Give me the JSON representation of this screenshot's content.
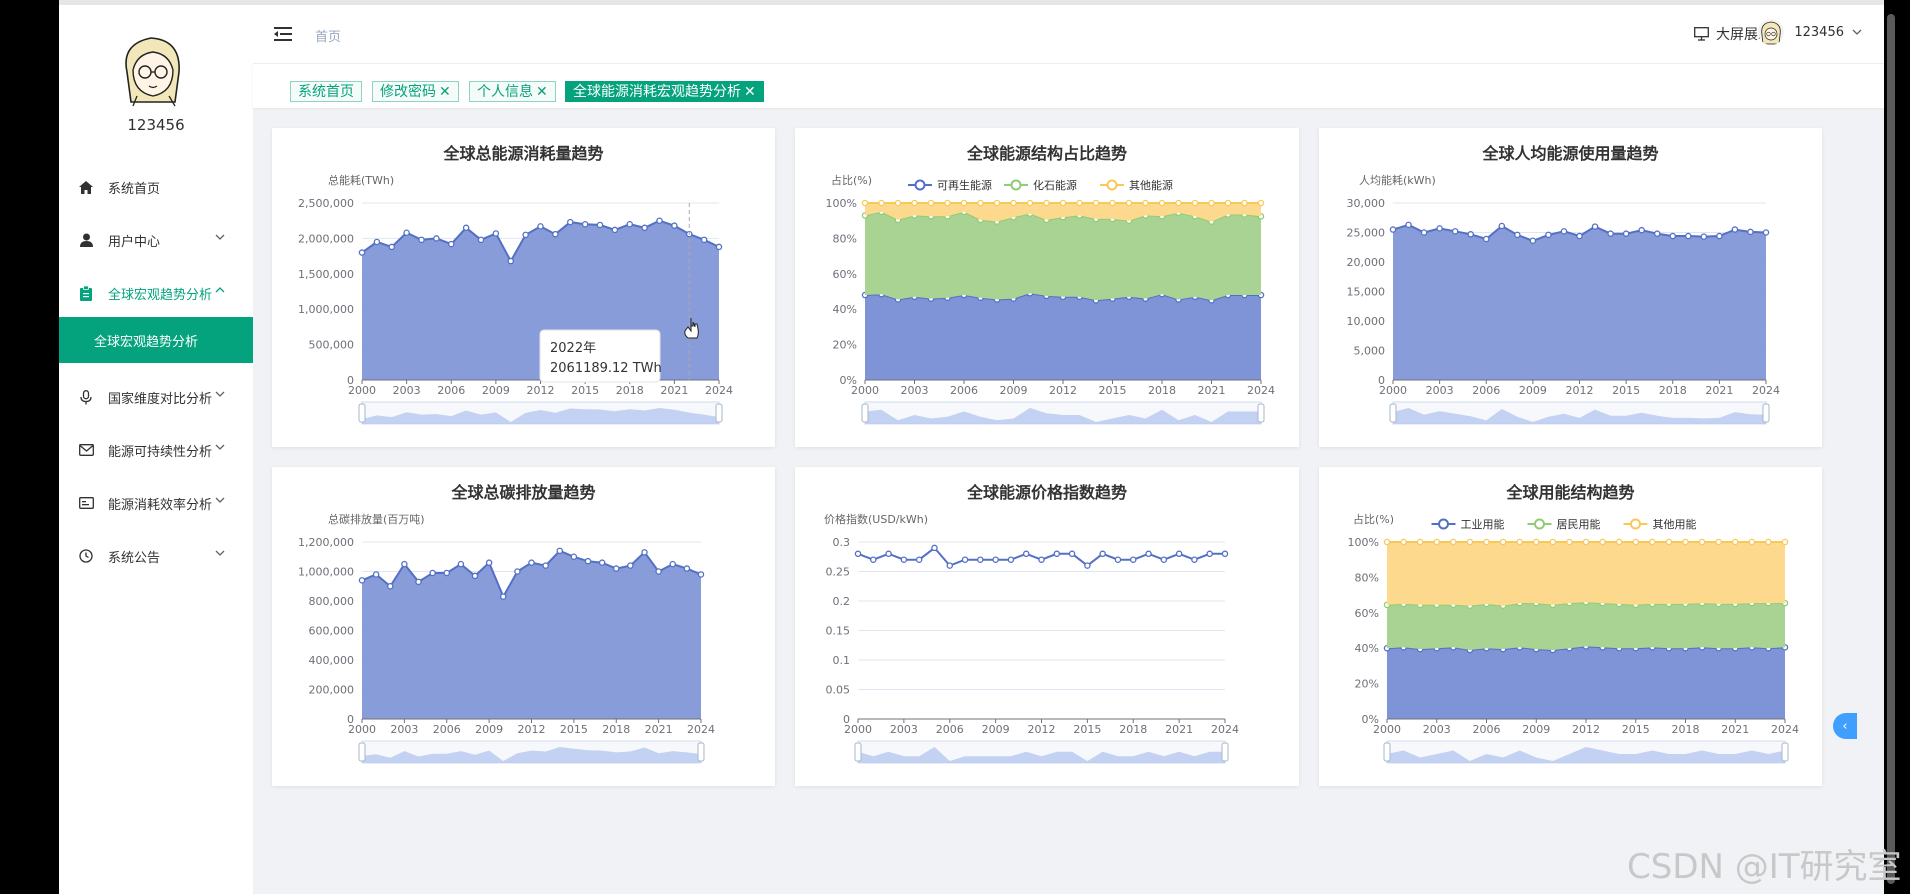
{
  "app": {
    "username": "123456"
  },
  "sidebar": {
    "items": [
      {
        "label": "系统首页",
        "icon": "home-icon"
      },
      {
        "label": "用户中心",
        "icon": "user-icon",
        "arrow": "⌄"
      },
      {
        "label": "全球宏观趋势分析",
        "icon": "clipboard-icon",
        "arrow": "^"
      },
      {
        "label": "国家维度对比分析",
        "icon": "microphone-icon",
        "arrow": "⌄"
      },
      {
        "label": "能源可持续性分析",
        "icon": "mail-icon",
        "arrow": "⌄"
      },
      {
        "label": "能源消耗效率分析",
        "icon": "card-icon",
        "arrow": "⌄"
      },
      {
        "label": "系统公告",
        "icon": "clock-icon",
        "arrow": "⌄"
      }
    ],
    "active_sub": "全球宏观趋势分析"
  },
  "header": {
    "breadcrumb": "首页",
    "bigscreen": "大屏展示",
    "username": "123456"
  },
  "tags": [
    {
      "label": "系统首页",
      "closable": false,
      "active": false
    },
    {
      "label": "修改密码",
      "closable": true,
      "active": false
    },
    {
      "label": "个人信息",
      "closable": true,
      "active": false
    },
    {
      "label": "全球能源消耗宏观趋势分析",
      "closable": true,
      "active": true
    }
  ],
  "tooltip": {
    "title": "2022年",
    "value": "2061189.12 TWh"
  },
  "watermark": "CSDN @IT研究室",
  "colors": {
    "accent": "#05a37d",
    "series_blue": "#5470c6",
    "series_green": "#91cc75",
    "series_yellow": "#fac858"
  },
  "chart_data": [
    {
      "id": "c1",
      "type": "area",
      "title": "全球总能源消耗量趋势",
      "ylabel": "总能耗(TWh)",
      "ylim": [
        0,
        2500000
      ],
      "yticks": [
        "0",
        "500,000",
        "1,000,000",
        "1,500,000",
        "2,000,000",
        "2,500,000"
      ],
      "xtick_labels": [
        "2000",
        "2003",
        "2006",
        "2009",
        "2012",
        "2015",
        "2018",
        "2021",
        "2024"
      ],
      "x": [
        2000,
        2001,
        2002,
        2003,
        2004,
        2005,
        2006,
        2007,
        2008,
        2009,
        2010,
        2011,
        2012,
        2013,
        2014,
        2015,
        2016,
        2017,
        2018,
        2019,
        2020,
        2021,
        2022,
        2023,
        2024
      ],
      "series": [
        {
          "values": [
            1800000,
            1950000,
            1880000,
            2080000,
            1980000,
            2000000,
            1920000,
            2150000,
            1980000,
            2070000,
            1680000,
            2050000,
            2170000,
            2060000,
            2230000,
            2200000,
            2190000,
            2120000,
            2200000,
            2150000,
            2250000,
            2180000,
            2061189.12,
            1980000,
            1880000
          ]
        }
      ]
    },
    {
      "id": "c2",
      "type": "area",
      "stacked": true,
      "title": "全球能源结构占比趋势",
      "ylabel": "占比(%)",
      "ylim": [
        0,
        100
      ],
      "yticks": [
        "0%",
        "20%",
        "40%",
        "60%",
        "80%",
        "100%"
      ],
      "legend": [
        "可再生能源",
        "化石能源",
        "其他能源"
      ],
      "xtick_labels": [
        "2000",
        "2003",
        "2006",
        "2009",
        "2012",
        "2015",
        "2018",
        "2021",
        "2024"
      ],
      "x": [
        2000,
        2001,
        2002,
        2003,
        2004,
        2005,
        2006,
        2007,
        2008,
        2009,
        2010,
        2011,
        2012,
        2013,
        2014,
        2015,
        2016,
        2017,
        2018,
        2019,
        2020,
        2021,
        2022,
        2023,
        2024
      ],
      "series": [
        {
          "name": "可再生能源",
          "values": [
            48,
            48.5,
            45.5,
            47,
            46,
            46.5,
            48,
            46.5,
            45.5,
            46,
            49,
            47.5,
            47,
            47,
            45,
            46,
            47,
            46,
            48.5,
            45.5,
            47,
            45,
            48,
            48,
            48
          ]
        },
        {
          "name": "化石能源",
          "values": [
            45,
            46.5,
            45,
            46,
            46.5,
            46,
            47,
            44,
            44,
            46,
            45,
            43,
            45,
            46,
            46,
            45,
            43,
            47,
            44,
            49,
            45.5,
            44.5,
            45.5,
            45.5,
            44.5
          ]
        },
        {
          "name": "其他能源",
          "values": [
            7,
            5,
            9.5,
            7,
            7.5,
            7.5,
            5,
            9.5,
            10.5,
            8,
            6,
            9.5,
            8,
            7,
            9,
            9,
            10,
            7,
            7.5,
            5.5,
            7.5,
            10.5,
            6.5,
            6.5,
            7.5
          ]
        }
      ]
    },
    {
      "id": "c3",
      "type": "area",
      "title": "全球人均能源使用量趋势",
      "ylabel": "人均能耗(kWh)",
      "ylim": [
        0,
        30000
      ],
      "yticks": [
        "0",
        "5,000",
        "10,000",
        "15,000",
        "20,000",
        "25,000",
        "30,000"
      ],
      "xtick_labels": [
        "2000",
        "2003",
        "2006",
        "2009",
        "2012",
        "2015",
        "2018",
        "2021",
        "2024"
      ],
      "x": [
        2000,
        2001,
        2002,
        2003,
        2004,
        2005,
        2006,
        2007,
        2008,
        2009,
        2010,
        2011,
        2012,
        2013,
        2014,
        2015,
        2016,
        2017,
        2018,
        2019,
        2020,
        2021,
        2022,
        2023,
        2024
      ],
      "series": [
        {
          "values": [
            25500,
            26300,
            25000,
            25700,
            25200,
            24700,
            23900,
            26100,
            24600,
            23600,
            24600,
            25200,
            24400,
            26000,
            24800,
            24800,
            25400,
            24800,
            24400,
            24400,
            24300,
            24400,
            25500,
            25100,
            25000
          ]
        }
      ]
    },
    {
      "id": "c4",
      "type": "area",
      "title": "全球总碳排放量趋势",
      "ylabel": "总碳排放量(百万吨)",
      "ylim": [
        0,
        1200000
      ],
      "yticks": [
        "0",
        "200,000",
        "400,000",
        "600,000",
        "800,000",
        "1,000,000",
        "1,200,000"
      ],
      "xtick_labels": [
        "2000",
        "2003",
        "2006",
        "2009",
        "2012",
        "2015",
        "2018",
        "2021",
        "2024"
      ],
      "x": [
        2000,
        2001,
        2002,
        2003,
        2004,
        2005,
        2006,
        2007,
        2008,
        2009,
        2010,
        2011,
        2012,
        2013,
        2014,
        2015,
        2016,
        2017,
        2018,
        2019,
        2020,
        2021,
        2022,
        2023,
        2024
      ],
      "series": [
        {
          "values": [
            940000,
            980000,
            900000,
            1050000,
            930000,
            990000,
            990000,
            1050000,
            970000,
            1060000,
            830000,
            1000000,
            1060000,
            1040000,
            1140000,
            1100000,
            1070000,
            1060000,
            1020000,
            1040000,
            1130000,
            1000000,
            1050000,
            1020000,
            980000
          ]
        }
      ]
    },
    {
      "id": "c5",
      "type": "line",
      "title": "全球能源价格指数趋势",
      "ylabel": "价格指数(USD/kWh)",
      "ylim": [
        0,
        0.3
      ],
      "yticks": [
        "0",
        "0.05",
        "0.1",
        "0.15",
        "0.2",
        "0.25",
        "0.3"
      ],
      "xtick_labels": [
        "2000",
        "2003",
        "2006",
        "2009",
        "2012",
        "2015",
        "2018",
        "2021",
        "2024"
      ],
      "x": [
        2000,
        2001,
        2002,
        2003,
        2004,
        2005,
        2006,
        2007,
        2008,
        2009,
        2010,
        2011,
        2012,
        2013,
        2014,
        2015,
        2016,
        2017,
        2018,
        2019,
        2020,
        2021,
        2022,
        2023,
        2024
      ],
      "series": [
        {
          "values": [
            0.28,
            0.27,
            0.28,
            0.27,
            0.27,
            0.29,
            0.26,
            0.27,
            0.27,
            0.27,
            0.27,
            0.28,
            0.27,
            0.28,
            0.28,
            0.26,
            0.28,
            0.27,
            0.27,
            0.28,
            0.27,
            0.28,
            0.27,
            0.28,
            0.28
          ]
        }
      ]
    },
    {
      "id": "c6",
      "type": "area",
      "stacked": true,
      "title": "全球用能结构趋势",
      "ylabel": "占比(%)",
      "ylim": [
        0,
        100
      ],
      "yticks": [
        "0%",
        "20%",
        "40%",
        "60%",
        "80%",
        "100%"
      ],
      "legend": [
        "工业用能",
        "居民用能",
        "其他用能"
      ],
      "xtick_labels": [
        "2000",
        "2003",
        "2006",
        "2009",
        "2012",
        "2015",
        "2018",
        "2021",
        "2024"
      ],
      "x": [
        2000,
        2001,
        2002,
        2003,
        2004,
        2005,
        2006,
        2007,
        2008,
        2009,
        2010,
        2011,
        2012,
        2013,
        2014,
        2015,
        2016,
        2017,
        2018,
        2019,
        2020,
        2021,
        2022,
        2023,
        2024
      ],
      "series": [
        {
          "name": "工业用能",
          "values": [
            40,
            40.5,
            39.5,
            40,
            40.5,
            39,
            40,
            39.5,
            40.5,
            39.5,
            39,
            40,
            41,
            40.5,
            40,
            40,
            40.5,
            40,
            40,
            40.5,
            40,
            40,
            40.5,
            40,
            40.5
          ]
        },
        {
          "name": "居民用能",
          "values": [
            24.5,
            24.5,
            25,
            24.5,
            24,
            25,
            25,
            24.5,
            25,
            26,
            25.5,
            25.5,
            25,
            25,
            25,
            24.5,
            24.5,
            25,
            25,
            25,
            25,
            25,
            25,
            25.5,
            25
          ]
        },
        {
          "name": "其他用能",
          "values": [
            35.5,
            35,
            35.5,
            35.5,
            35.5,
            36,
            35,
            36,
            34.5,
            34.5,
            35.5,
            34.5,
            34,
            34.5,
            35,
            35.5,
            35,
            35,
            35,
            34.5,
            35,
            35,
            34.5,
            34.5,
            34.5
          ]
        }
      ]
    }
  ]
}
